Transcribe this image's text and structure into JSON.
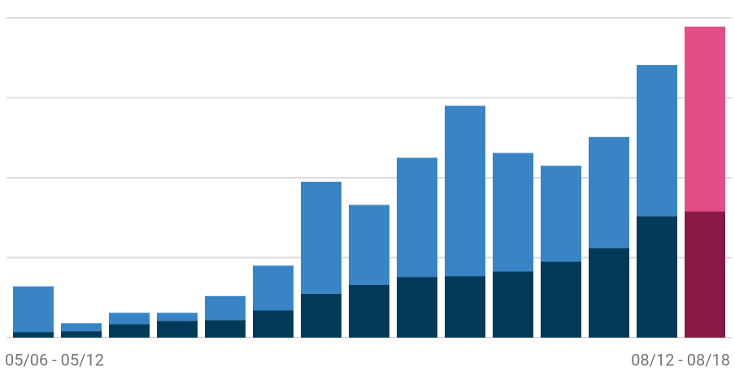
{
  "chart_data": {
    "type": "stacked_bar",
    "categories": [
      "05/06 - 05/12",
      null,
      null,
      null,
      null,
      null,
      null,
      null,
      null,
      null,
      null,
      null,
      null,
      null,
      "08/12 - 08/18"
    ],
    "series": [
      {
        "color": "#033a59",
        "highlight_color": "#891a46",
        "values": [
          0.07,
          0.08,
          0.17,
          0.21,
          0.22,
          0.34,
          0.55,
          0.66,
          0.76,
          0.77,
          0.83,
          0.95,
          1.12,
          1.52,
          1.58
        ]
      },
      {
        "color": "#3884c7",
        "highlight_color": "#e34e86",
        "values": [
          0.57,
          0.1,
          0.14,
          0.1,
          0.3,
          0.56,
          1.4,
          1.0,
          1.49,
          2.13,
          1.48,
          1.2,
          1.39,
          1.89,
          2.31
        ]
      }
    ],
    "highlight_index": 14,
    "ylim": [
      0,
      4
    ],
    "yticks": [
      0,
      1,
      2,
      3,
      4
    ],
    "grid": true
  }
}
